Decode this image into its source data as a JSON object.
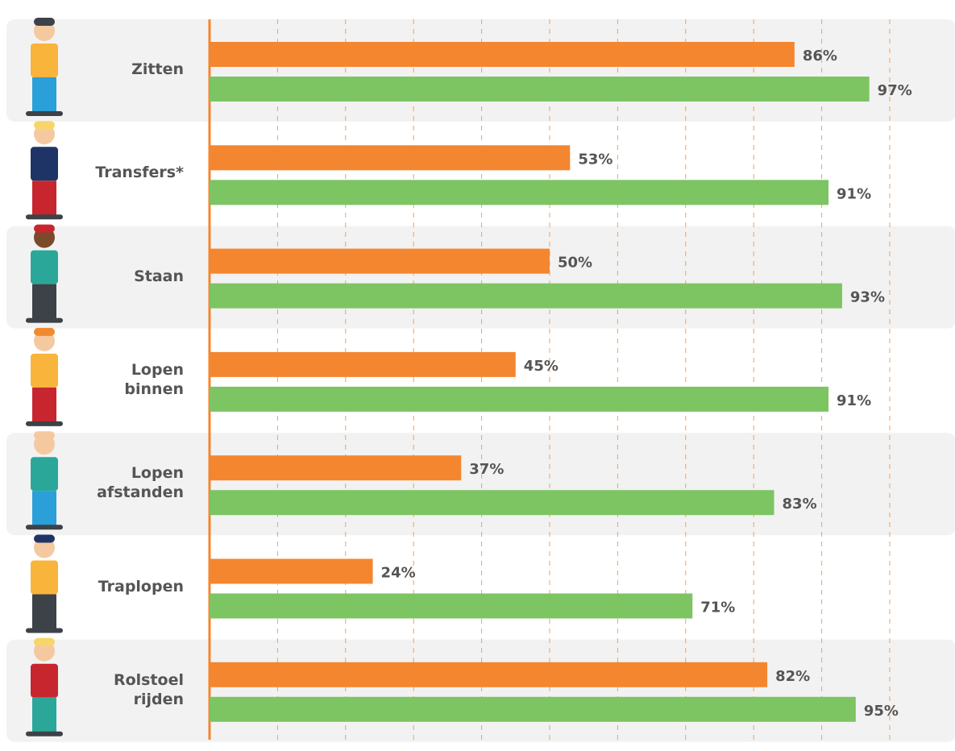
{
  "chart_data": {
    "type": "bar",
    "orientation": "horizontal",
    "categories": [
      "Zitten",
      "Transfers*",
      "Staan",
      "Lopen binnen",
      "Lopen afstanden",
      "Traplopen",
      "Rolstoel rijden"
    ],
    "series": [
      {
        "color": "#f4862f",
        "values": [
          86,
          53,
          50,
          45,
          37,
          24,
          82
        ],
        "value_labels": [
          "86%",
          "53%",
          "50%",
          "45%",
          "37%",
          "24%",
          "82%"
        ]
      },
      {
        "color": "#7dc463",
        "values": [
          97,
          91,
          93,
          91,
          83,
          71,
          95
        ],
        "value_labels": [
          "97%",
          "91%",
          "93%",
          "91%",
          "83%",
          "71%",
          "95%"
        ]
      }
    ],
    "xlim": [
      0,
      100
    ],
    "xticks": [
      10,
      20,
      30,
      40,
      50,
      60,
      70,
      80,
      90,
      100
    ],
    "grid": true,
    "grid_style": "dashed"
  }
}
